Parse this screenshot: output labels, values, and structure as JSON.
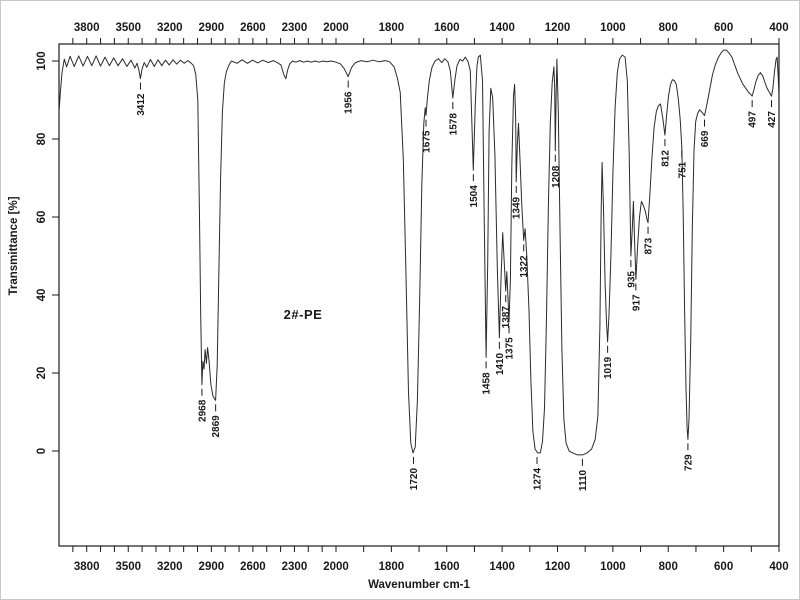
{
  "chart_data": {
    "type": "line",
    "title": "",
    "sample_label": "2#-PE",
    "xlabel": "Wavenumber cm-1",
    "ylabel": "Transmittance [%]",
    "line_color": "#2b2b2b",
    "grid": false,
    "x_axis": {
      "left_value": 4000,
      "right_value": 400,
      "reversed": true,
      "scale_break_at": 2000,
      "labeled_ticks": [
        3800,
        3500,
        3200,
        2900,
        2600,
        2300,
        2000,
        1800,
        1600,
        1400,
        1200,
        1000,
        800,
        600,
        400
      ],
      "minor_tick_step": 100,
      "mirrored_top_and_bottom": true
    },
    "y_axis": {
      "ticks": [
        0,
        20,
        40,
        60,
        80,
        100
      ],
      "min": 0,
      "max": 100,
      "labels_rotated": true
    },
    "peaks": [
      {
        "label": "3412",
        "wavenumber": 3412,
        "transmittance": 95.5
      },
      {
        "label": "2968",
        "wavenumber": 2968,
        "transmittance": 17
      },
      {
        "label": "2869",
        "wavenumber": 2869,
        "transmittance": 13
      },
      {
        "label": "1956",
        "wavenumber": 1956,
        "transmittance": 96
      },
      {
        "label": "1720",
        "wavenumber": 1720,
        "transmittance": -0.5
      },
      {
        "label": "1675",
        "wavenumber": 1675,
        "transmittance": 86
      },
      {
        "label": "1578",
        "wavenumber": 1578,
        "transmittance": 90.5
      },
      {
        "label": "1504",
        "wavenumber": 1504,
        "transmittance": 72
      },
      {
        "label": "1458",
        "wavenumber": 1458,
        "transmittance": 24
      },
      {
        "label": "1410",
        "wavenumber": 1410,
        "transmittance": 29
      },
      {
        "label": "1387",
        "wavenumber": 1387,
        "transmittance": 41
      },
      {
        "label": "1375",
        "wavenumber": 1375,
        "transmittance": 33
      },
      {
        "label": "1349",
        "wavenumber": 1349,
        "transmittance": 69
      },
      {
        "label": "1322",
        "wavenumber": 1322,
        "transmittance": 54
      },
      {
        "label": "1274",
        "wavenumber": 1274,
        "transmittance": -0.5
      },
      {
        "label": "1208",
        "wavenumber": 1208,
        "transmittance": 77
      },
      {
        "label": "1110",
        "wavenumber": 1110,
        "transmittance": -1
      },
      {
        "label": "1019",
        "wavenumber": 1019,
        "transmittance": 28
      },
      {
        "label": "935",
        "wavenumber": 935,
        "transmittance": 50
      },
      {
        "label": "917",
        "wavenumber": 917,
        "transmittance": 44
      },
      {
        "label": "873",
        "wavenumber": 873,
        "transmittance": 58.5
      },
      {
        "label": "812",
        "wavenumber": 812,
        "transmittance": 81
      },
      {
        "label": "751",
        "wavenumber": 751,
        "transmittance": 78
      },
      {
        "label": "729",
        "wavenumber": 729,
        "transmittance": 3
      },
      {
        "label": "669",
        "wavenumber": 669,
        "transmittance": 86
      },
      {
        "label": "497",
        "wavenumber": 497,
        "transmittance": 91
      },
      {
        "label": "427",
        "wavenumber": 427,
        "transmittance": 91
      }
    ],
    "curve_points": [
      [
        4000,
        87
      ],
      [
        3990,
        92
      ],
      [
        3978,
        97
      ],
      [
        3962,
        100.5
      ],
      [
        3945,
        98.5
      ],
      [
        3920,
        101.2
      ],
      [
        3890,
        98.6
      ],
      [
        3858,
        101.3
      ],
      [
        3826,
        98.7
      ],
      [
        3795,
        101.2
      ],
      [
        3763,
        98.8
      ],
      [
        3732,
        101.3
      ],
      [
        3700,
        98.7
      ],
      [
        3668,
        101
      ],
      [
        3636,
        98.8
      ],
      [
        3605,
        100.8
      ],
      [
        3573,
        98.8
      ],
      [
        3541,
        100.6
      ],
      [
        3510,
        98.6
      ],
      [
        3480,
        100.2
      ],
      [
        3452,
        98.2
      ],
      [
        3437,
        99.4
      ],
      [
        3424,
        97.8
      ],
      [
        3412,
        95.5
      ],
      [
        3400,
        98
      ],
      [
        3385,
        99.6
      ],
      [
        3366,
        98.4
      ],
      [
        3340,
        100.4
      ],
      [
        3312,
        98.6
      ],
      [
        3285,
        100.3
      ],
      [
        3258,
        98.8
      ],
      [
        3231,
        100.2
      ],
      [
        3204,
        99
      ],
      [
        3177,
        100.3
      ],
      [
        3150,
        99.2
      ],
      [
        3123,
        100.2
      ],
      [
        3096,
        99.4
      ],
      [
        3069,
        100.1
      ],
      [
        3045,
        99.4
      ],
      [
        3028,
        98.8
      ],
      [
        3012,
        96.5
      ],
      [
        2998,
        90
      ],
      [
        2986,
        62
      ],
      [
        2977,
        35
      ],
      [
        2968,
        17
      ],
      [
        2961,
        23
      ],
      [
        2953,
        21
      ],
      [
        2945,
        26
      ],
      [
        2936,
        22.5
      ],
      [
        2927,
        26.5
      ],
      [
        2916,
        23
      ],
      [
        2903,
        17
      ],
      [
        2888,
        14
      ],
      [
        2869,
        13
      ],
      [
        2858,
        22
      ],
      [
        2846,
        45
      ],
      [
        2833,
        70
      ],
      [
        2820,
        87
      ],
      [
        2806,
        94.5
      ],
      [
        2790,
        97.5
      ],
      [
        2772,
        99
      ],
      [
        2755,
        100
      ],
      [
        2715,
        99.4
      ],
      [
        2678,
        100.3
      ],
      [
        2640,
        99.4
      ],
      [
        2602,
        100.2
      ],
      [
        2565,
        99.5
      ],
      [
        2528,
        100.2
      ],
      [
        2490,
        99.6
      ],
      [
        2453,
        100.1
      ],
      [
        2420,
        99.5
      ],
      [
        2398,
        99
      ],
      [
        2375,
        96.3
      ],
      [
        2362,
        95.5
      ],
      [
        2350,
        97.6
      ],
      [
        2334,
        99.2
      ],
      [
        2315,
        100
      ],
      [
        2290,
        99.7
      ],
      [
        2262,
        100.1
      ],
      [
        2234,
        99.7
      ],
      [
        2206,
        100
      ],
      [
        2178,
        99.7
      ],
      [
        2150,
        100
      ],
      [
        2122,
        99.7
      ],
      [
        2094,
        100
      ],
      [
        2066,
        99.8
      ],
      [
        2038,
        100
      ],
      [
        2010,
        99.8
      ],
      [
        1985,
        99.3
      ],
      [
        1970,
        98
      ],
      [
        1956,
        96
      ],
      [
        1944,
        98.3
      ],
      [
        1930,
        99.6
      ],
      [
        1910,
        100.1
      ],
      [
        1888,
        99.8
      ],
      [
        1866,
        100.2
      ],
      [
        1844,
        99.8
      ],
      [
        1822,
        100.1
      ],
      [
        1806,
        99.8
      ],
      [
        1790,
        98.5
      ],
      [
        1778,
        95.5
      ],
      [
        1768,
        92
      ],
      [
        1757,
        75
      ],
      [
        1747,
        45
      ],
      [
        1738,
        15
      ],
      [
        1730,
        2
      ],
      [
        1722,
        -0.5
      ],
      [
        1714,
        1
      ],
      [
        1706,
        13
      ],
      [
        1698,
        38
      ],
      [
        1690,
        68
      ],
      [
        1683,
        84
      ],
      [
        1678,
        88
      ],
      [
        1675,
        86
      ],
      [
        1670,
        90.5
      ],
      [
        1663,
        95
      ],
      [
        1653,
        98.5
      ],
      [
        1642,
        100
      ],
      [
        1630,
        100.6
      ],
      [
        1618,
        99.6
      ],
      [
        1607,
        100.6
      ],
      [
        1596,
        99.8
      ],
      [
        1587,
        97.5
      ],
      [
        1578,
        90.5
      ],
      [
        1571,
        95
      ],
      [
        1563,
        98.8
      ],
      [
        1552,
        100.4
      ],
      [
        1542,
        100
      ],
      [
        1533,
        101
      ],
      [
        1523,
        99.8
      ],
      [
        1515,
        97.5
      ],
      [
        1504,
        72
      ],
      [
        1497,
        89
      ],
      [
        1491,
        98.5
      ],
      [
        1486,
        101
      ],
      [
        1479,
        101.5
      ],
      [
        1471,
        95
      ],
      [
        1465,
        62
      ],
      [
        1458,
        24
      ],
      [
        1452,
        48
      ],
      [
        1447,
        82
      ],
      [
        1441,
        93
      ],
      [
        1434,
        90.5
      ],
      [
        1426,
        76
      ],
      [
        1417,
        46
      ],
      [
        1410,
        29
      ],
      [
        1404,
        44
      ],
      [
        1398,
        56
      ],
      [
        1392,
        48
      ],
      [
        1387,
        41
      ],
      [
        1383,
        46
      ],
      [
        1378,
        38
      ],
      [
        1375,
        33
      ],
      [
        1370,
        44
      ],
      [
        1365,
        73
      ],
      [
        1359,
        91
      ],
      [
        1355,
        94
      ],
      [
        1351,
        85
      ],
      [
        1349,
        69
      ],
      [
        1345,
        79
      ],
      [
        1341,
        84
      ],
      [
        1336,
        76
      ],
      [
        1329,
        63
      ],
      [
        1322,
        54
      ],
      [
        1317,
        57
      ],
      [
        1311,
        50
      ],
      [
        1303,
        36
      ],
      [
        1296,
        18
      ],
      [
        1289,
        5
      ],
      [
        1281,
        0.5
      ],
      [
        1272,
        -0.5
      ],
      [
        1262,
        -0.5
      ],
      [
        1254,
        2.5
      ],
      [
        1247,
        11
      ],
      [
        1240,
        33
      ],
      [
        1233,
        63
      ],
      [
        1226,
        84
      ],
      [
        1219,
        94.5
      ],
      [
        1213,
        98.5
      ],
      [
        1210,
        93
      ],
      [
        1208,
        77
      ],
      [
        1205,
        91
      ],
      [
        1202,
        100.5
      ],
      [
        1197,
        87
      ],
      [
        1191,
        57
      ],
      [
        1184,
        26
      ],
      [
        1177,
        8
      ],
      [
        1169,
        2
      ],
      [
        1158,
        0
      ],
      [
        1145,
        -0.5
      ],
      [
        1128,
        -1
      ],
      [
        1110,
        -1
      ],
      [
        1093,
        -0.5
      ],
      [
        1077,
        0.5
      ],
      [
        1064,
        3
      ],
      [
        1054,
        9
      ],
      [
        1047,
        32
      ],
      [
        1042,
        62
      ],
      [
        1039,
        74
      ],
      [
        1034,
        62
      ],
      [
        1028,
        43
      ],
      [
        1023,
        33
      ],
      [
        1019,
        28
      ],
      [
        1014,
        35
      ],
      [
        1007,
        50
      ],
      [
        1000,
        71
      ],
      [
        992,
        88
      ],
      [
        984,
        97
      ],
      [
        976,
        100.5
      ],
      [
        966,
        101.5
      ],
      [
        956,
        101
      ],
      [
        948,
        95
      ],
      [
        941,
        76
      ],
      [
        935,
        50
      ],
      [
        930,
        57
      ],
      [
        926,
        64
      ],
      [
        921,
        53
      ],
      [
        917,
        44
      ],
      [
        911,
        52
      ],
      [
        904,
        60
      ],
      [
        897,
        64
      ],
      [
        890,
        63
      ],
      [
        883,
        61.5
      ],
      [
        877,
        59.5
      ],
      [
        873,
        58.5
      ],
      [
        867,
        65
      ],
      [
        859,
        75
      ],
      [
        851,
        83
      ],
      [
        843,
        87
      ],
      [
        836,
        88.5
      ],
      [
        828,
        89
      ],
      [
        820,
        85.5
      ],
      [
        812,
        81
      ],
      [
        806,
        86
      ],
      [
        799,
        91
      ],
      [
        792,
        94
      ],
      [
        785,
        95.2
      ],
      [
        778,
        95
      ],
      [
        771,
        94
      ],
      [
        764,
        90.5
      ],
      [
        757,
        85
      ],
      [
        751,
        78
      ],
      [
        746,
        61
      ],
      [
        741,
        36
      ],
      [
        736,
        16
      ],
      [
        732,
        6
      ],
      [
        729,
        3
      ],
      [
        725,
        8
      ],
      [
        719,
        28
      ],
      [
        713,
        57
      ],
      [
        707,
        77
      ],
      [
        701,
        84.5
      ],
      [
        694,
        86.5
      ],
      [
        687,
        87.5
      ],
      [
        680,
        87
      ],
      [
        674,
        86.5
      ],
      [
        669,
        86
      ],
      [
        663,
        88
      ],
      [
        656,
        90.5
      ],
      [
        648,
        93.5
      ],
      [
        640,
        96.5
      ],
      [
        630,
        99
      ],
      [
        620,
        100.8
      ],
      [
        610,
        102
      ],
      [
        600,
        102.8
      ],
      [
        590,
        102.8
      ],
      [
        580,
        102
      ],
      [
        570,
        101
      ],
      [
        560,
        99
      ],
      [
        550,
        97
      ],
      [
        540,
        95.5
      ],
      [
        530,
        94
      ],
      [
        520,
        93
      ],
      [
        510,
        92
      ],
      [
        503,
        91.5
      ],
      [
        497,
        91
      ],
      [
        490,
        92.8
      ],
      [
        483,
        94.8
      ],
      [
        475,
        96.3
      ],
      [
        467,
        97
      ],
      [
        459,
        96.2
      ],
      [
        451,
        94.5
      ],
      [
        443,
        93
      ],
      [
        435,
        92
      ],
      [
        431,
        91.5
      ],
      [
        427,
        91
      ],
      [
        422,
        93
      ],
      [
        416,
        97.5
      ],
      [
        411,
        100.3
      ],
      [
        407,
        101
      ],
      [
        403,
        96
      ],
      [
        400,
        91
      ]
    ]
  }
}
